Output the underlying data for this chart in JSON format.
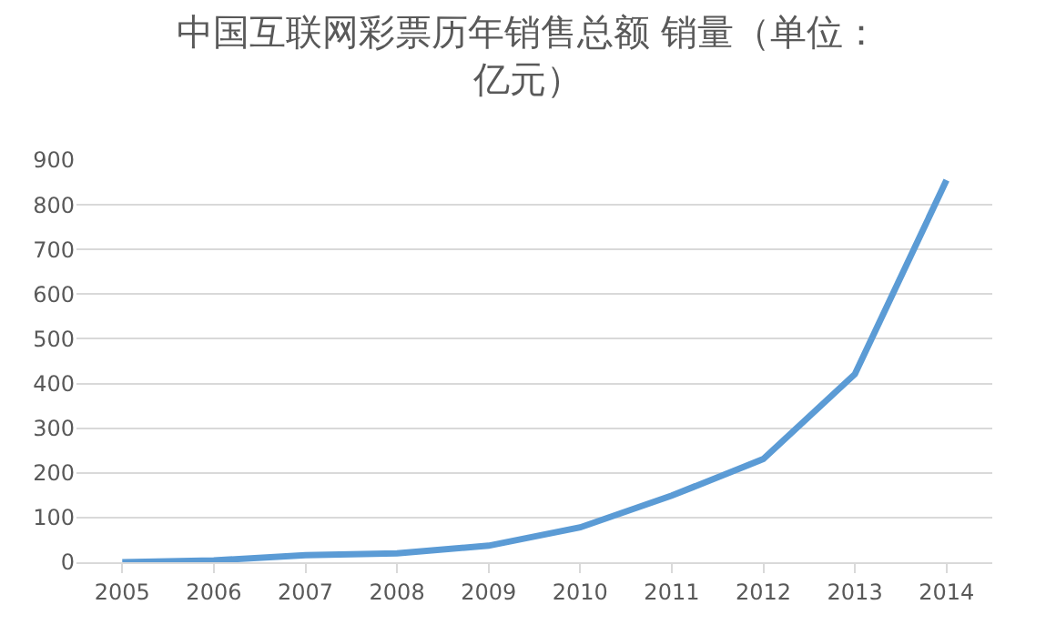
{
  "chart_data": {
    "type": "line",
    "title": "中国互联网彩票历年销售总额 销量（单位：亿元）",
    "categories": [
      "2005",
      "2006",
      "2007",
      "2008",
      "2009",
      "2010",
      "2011",
      "2012",
      "2013",
      "2014"
    ],
    "series": [
      {
        "color": "#5b9bd5",
        "values": [
          0,
          4,
          16,
          20,
          37,
          78,
          149,
          231,
          421,
          855
        ]
      }
    ],
    "ylim": [
      0,
      900
    ],
    "yticks": [
      0,
      100,
      200,
      300,
      400,
      500,
      600,
      700,
      800,
      900
    ],
    "grid": "y",
    "marker": "none",
    "line_style": "solid"
  }
}
